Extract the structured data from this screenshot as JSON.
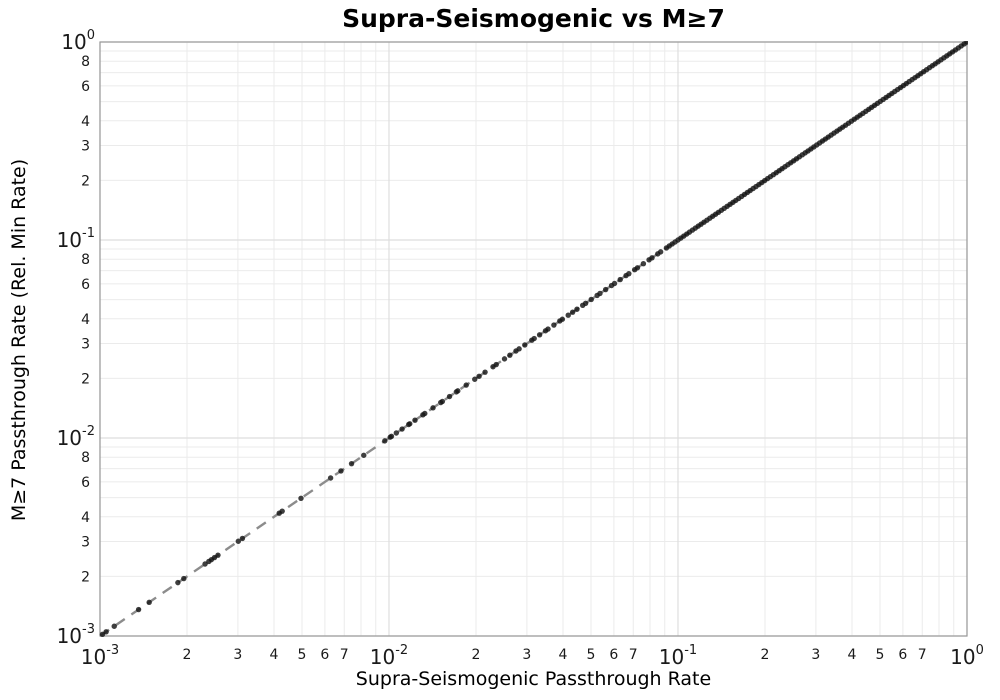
{
  "page": {
    "background": "#ffffff"
  },
  "colors": {
    "marker": "#151515",
    "identity_line": "#8c8c8c",
    "grid_minor": "#ebebeb",
    "grid_major": "#dedede",
    "spine": "#999999",
    "tick_text": "#1a1a1a"
  },
  "chart_data": {
    "type": "scatter",
    "title": "Supra-Seismogenic vs M≥7",
    "xlabel": "Supra-Seismogenic Passthrough Rate",
    "ylabel": "M≥7 Passthrough Rate (Rel. Min Rate)",
    "xscale": "log",
    "yscale": "log",
    "xlim": [
      0.001,
      1
    ],
    "ylim": [
      0.001,
      1
    ],
    "grid": true,
    "legend": false,
    "x_major_ticks": [
      {
        "value": 0.001,
        "base": "10",
        "exp": "-3"
      },
      {
        "value": 0.01,
        "base": "10",
        "exp": "-2"
      },
      {
        "value": 0.1,
        "base": "10",
        "exp": "-1"
      },
      {
        "value": 1,
        "base": "10",
        "exp": "0"
      }
    ],
    "y_major_ticks": [
      {
        "value": 1,
        "base": "10",
        "exp": "0"
      },
      {
        "value": 0.1,
        "base": "10",
        "exp": "-1"
      },
      {
        "value": 0.01,
        "base": "10",
        "exp": "-2"
      },
      {
        "value": 0.001,
        "base": "10",
        "exp": "-3"
      }
    ],
    "x_minor_label_multipliers": [
      2,
      3,
      4,
      5,
      6,
      7
    ],
    "y_minor_label_multipliers": [
      2,
      3,
      4,
      6,
      8
    ],
    "identity_line": {
      "style": "dashed",
      "from": 0.001,
      "to": 1.0
    },
    "series": [
      {
        "name": "passthrough-rates",
        "marker": "circle",
        "x_equals_y": true,
        "values": [
          0.00102,
          0.00105,
          0.00112,
          0.00136,
          0.00148,
          0.00186,
          0.00195,
          0.00231,
          0.00238,
          0.00243,
          0.00249,
          0.00256,
          0.00301,
          0.00311,
          0.00417,
          0.00427,
          0.00496,
          0.00628,
          0.00682,
          0.00742,
          0.00818,
          0.00967,
          0.0101,
          0.0102,
          0.0106,
          0.0111,
          0.0117,
          0.0118,
          0.0123,
          0.0131,
          0.0133,
          0.0142,
          0.0151,
          0.0153,
          0.0162,
          0.0171,
          0.0173,
          0.0185,
          0.0198,
          0.0205,
          0.0215,
          0.0229,
          0.0235,
          0.0251,
          0.0262,
          0.0275,
          0.0282,
          0.0295,
          0.0312,
          0.0318,
          0.0332,
          0.0348,
          0.0355,
          0.0372,
          0.039,
          0.0398,
          0.0417,
          0.0432,
          0.0447,
          0.0468,
          0.0479,
          0.0501,
          0.0525,
          0.0537,
          0.0562,
          0.0589,
          0.0603,
          0.0631,
          0.0661,
          0.0676,
          0.0708,
          0.0724,
          0.0759,
          0.0794,
          0.0813,
          0.0851,
          0.0871,
          0.0912,
          0.0933,
          0.0955,
          0.0977,
          0.1,
          0.1023,
          0.1047,
          0.1072,
          0.1096,
          0.1122,
          0.1148,
          0.1175,
          0.1202,
          0.123,
          0.1259,
          0.1288,
          0.1318,
          0.1349,
          0.138,
          0.1413,
          0.1445,
          0.1479,
          0.1514,
          0.1549,
          0.1585,
          0.1622,
          0.166,
          0.1698,
          0.1738,
          0.1778,
          0.182,
          0.1862,
          0.1905,
          0.195,
          0.1995,
          0.2042,
          0.2089,
          0.2138,
          0.2188,
          0.2239,
          0.2291,
          0.2344,
          0.2399,
          0.2455,
          0.2512,
          0.257,
          0.263,
          0.2692,
          0.2754,
          0.2818,
          0.2884,
          0.2951,
          0.302,
          0.309,
          0.3162,
          0.3236,
          0.3311,
          0.3388,
          0.3467,
          0.3548,
          0.3631,
          0.3715,
          0.3802,
          0.389,
          0.3981,
          0.4074,
          0.4169,
          0.4266,
          0.4365,
          0.4467,
          0.4571,
          0.4677,
          0.4786,
          0.4898,
          0.5012,
          0.5129,
          0.5248,
          0.537,
          0.5495,
          0.5623,
          0.5754,
          0.5888,
          0.6026,
          0.6166,
          0.631,
          0.6457,
          0.6607,
          0.6761,
          0.6918,
          0.7079,
          0.7244,
          0.7413,
          0.7586,
          0.7762,
          0.7943,
          0.8128,
          0.8318,
          0.8511,
          0.871,
          0.8913,
          0.912,
          0.9333,
          0.955,
          0.9772,
          1.0
        ]
      }
    ]
  }
}
